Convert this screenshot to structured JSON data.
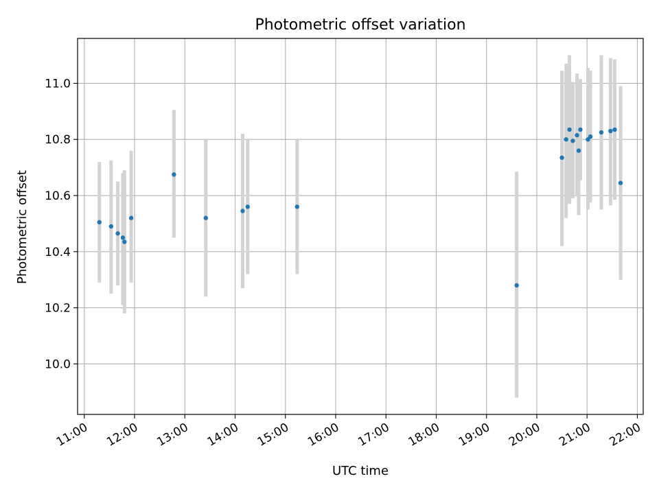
{
  "chart_data": {
    "type": "scatter",
    "title": "Photometric offset variation",
    "xlabel": "UTC time",
    "ylabel": "Photometric offset",
    "xlim": [
      "10:52",
      "22:07"
    ],
    "ylim": [
      9.82,
      11.16
    ],
    "x_ticks": [
      "11:00",
      "12:00",
      "13:00",
      "14:00",
      "15:00",
      "16:00",
      "17:00",
      "18:00",
      "19:00",
      "20:00",
      "21:00",
      "22:00"
    ],
    "y_ticks": [
      "10.0",
      "10.2",
      "10.4",
      "10.6",
      "10.8",
      "11.0"
    ],
    "grid": true,
    "point_color": "#1f77b4",
    "errorbar_color": "#d3d3d3",
    "points": [
      {
        "time": "11:18",
        "offset": 10.505,
        "low": 10.29,
        "high": 10.72
      },
      {
        "time": "11:32",
        "offset": 10.49,
        "low": 10.25,
        "high": 10.725
      },
      {
        "time": "11:40",
        "offset": 10.465,
        "low": 10.28,
        "high": 10.65
      },
      {
        "time": "11:46",
        "offset": 10.45,
        "low": 10.21,
        "high": 10.68
      },
      {
        "time": "11:48",
        "offset": 10.435,
        "low": 10.18,
        "high": 10.69
      },
      {
        "time": "11:56",
        "offset": 10.52,
        "low": 10.29,
        "high": 10.76
      },
      {
        "time": "12:47",
        "offset": 10.675,
        "low": 10.45,
        "high": 10.905
      },
      {
        "time": "13:25",
        "offset": 10.52,
        "low": 10.24,
        "high": 10.8
      },
      {
        "time": "14:09",
        "offset": 10.545,
        "low": 10.27,
        "high": 10.82
      },
      {
        "time": "14:15",
        "offset": 10.56,
        "low": 10.32,
        "high": 10.8
      },
      {
        "time": "15:14",
        "offset": 10.56,
        "low": 10.32,
        "high": 10.8
      },
      {
        "time": "19:36",
        "offset": 10.28,
        "low": 9.88,
        "high": 10.685
      },
      {
        "time": "20:30",
        "offset": 10.735,
        "low": 10.42,
        "high": 11.045
      },
      {
        "time": "20:35",
        "offset": 10.8,
        "low": 10.52,
        "high": 11.07
      },
      {
        "time": "20:39",
        "offset": 10.835,
        "low": 10.57,
        "high": 11.1
      },
      {
        "time": "20:43",
        "offset": 10.795,
        "low": 10.59,
        "high": 11.005
      },
      {
        "time": "20:48",
        "offset": 10.815,
        "low": 10.6,
        "high": 11.035
      },
      {
        "time": "20:50",
        "offset": 10.76,
        "low": 10.53,
        "high": 10.995
      },
      {
        "time": "20:52",
        "offset": 10.835,
        "low": 10.655,
        "high": 11.015
      },
      {
        "time": "21:01",
        "offset": 10.8,
        "low": 10.55,
        "high": 11.055
      },
      {
        "time": "21:04",
        "offset": 10.81,
        "low": 10.575,
        "high": 11.045
      },
      {
        "time": "21:17",
        "offset": 10.825,
        "low": 10.55,
        "high": 11.1
      },
      {
        "time": "21:28",
        "offset": 10.83,
        "low": 10.565,
        "high": 11.09
      },
      {
        "time": "21:33",
        "offset": 10.835,
        "low": 10.585,
        "high": 11.085
      },
      {
        "time": "21:40",
        "offset": 10.645,
        "low": 10.3,
        "high": 10.99
      }
    ]
  }
}
